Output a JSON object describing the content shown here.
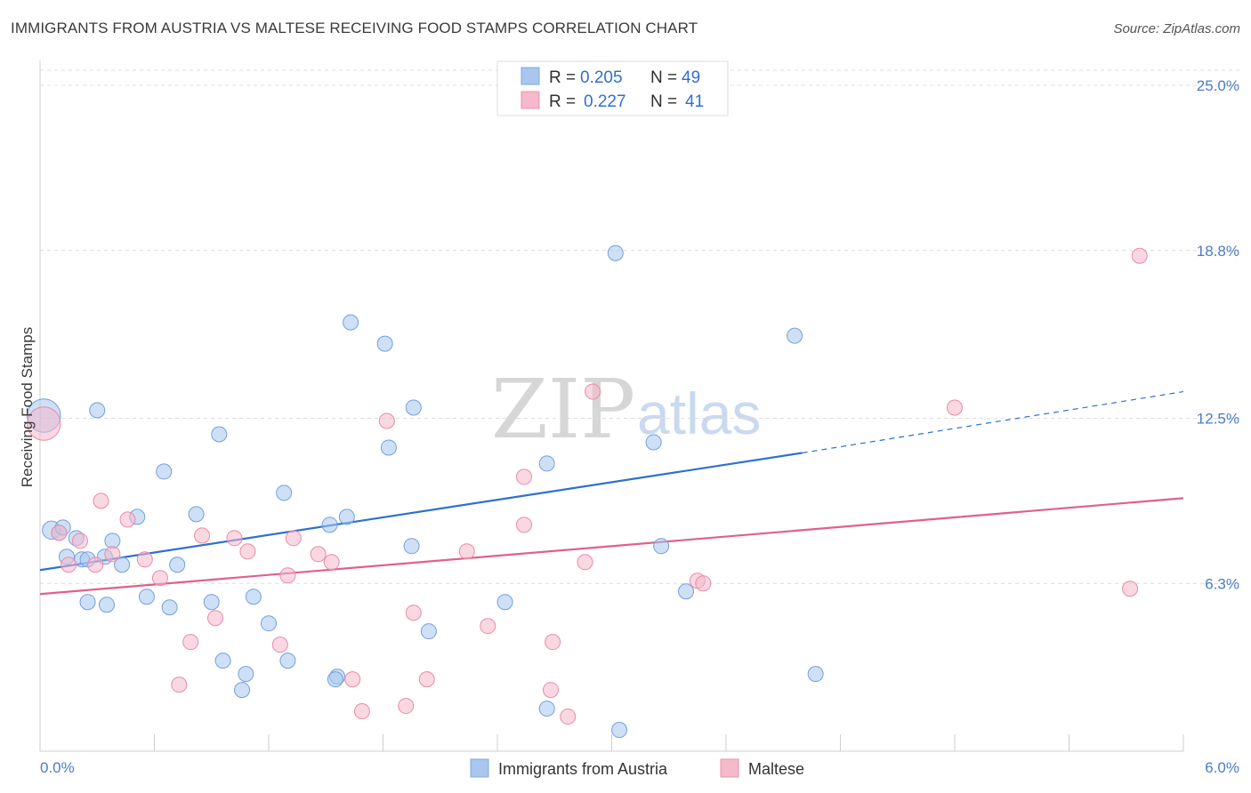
{
  "header": {
    "title": "IMMIGRANTS FROM AUSTRIA VS MALTESE RECEIVING FOOD STAMPS CORRELATION CHART",
    "source": "Source: ZipAtlas.com"
  },
  "watermark": {
    "zip": "ZIP",
    "atlas": "atlas"
  },
  "legend": {
    "rows": [
      {
        "r_label": "R = ",
        "r_value": "0.205",
        "n_label": "N = ",
        "n_value": "49",
        "color": "#a8c6ee"
      },
      {
        "r_label": "R = ",
        "r_value": "0.227",
        "n_label": "N = ",
        "n_value": "41",
        "color": "#f6b8cb"
      }
    ]
  },
  "bottom_legend": [
    {
      "label": "Immigrants from Austria",
      "color": "#a8c6ee"
    },
    {
      "label": "Maltese",
      "color": "#f6b8cb"
    }
  ],
  "chart_data": {
    "type": "scatter",
    "title": "IMMIGRANTS FROM AUSTRIA VS MALTESE RECEIVING FOOD STAMPS CORRELATION CHART",
    "xlabel": "",
    "ylabel": "Receiving Food Stamps",
    "xlim": [
      0,
      6.0
    ],
    "ylim": [
      0,
      25.0
    ],
    "x_tick_labels": [
      {
        "value": 0,
        "label": "0.0%"
      },
      {
        "value": 6.0,
        "label": "6.0%"
      }
    ],
    "y_tick_labels": [
      {
        "value": 6.3,
        "label": "6.3%"
      },
      {
        "value": 12.5,
        "label": "12.5%"
      },
      {
        "value": 18.8,
        "label": "18.8%"
      },
      {
        "value": 25.0,
        "label": "25.0%"
      }
    ],
    "grid": "horizontal dashed",
    "legend_position": "top-center",
    "series": [
      {
        "name": "Immigrants from Austria",
        "color": "#6fa0e0",
        "fill": "#a8c6ee",
        "R": 0.205,
        "N": 49,
        "trend": {
          "x": [
            0,
            4.0
          ],
          "y": [
            6.8,
            11.2
          ],
          "dashed_to": [
            6.0,
            13.5
          ]
        },
        "points": [
          [
            0.02,
            12.6,
            2.2
          ],
          [
            0.06,
            8.3,
            1.2
          ],
          [
            0.1,
            8.2,
            1.0
          ],
          [
            0.14,
            7.3,
            1.0
          ],
          [
            0.19,
            8.0,
            1.0
          ],
          [
            0.22,
            7.2,
            1.0
          ],
          [
            0.25,
            7.2,
            1.0
          ],
          [
            0.3,
            12.8,
            1.0
          ],
          [
            0.34,
            7.3,
            1.0
          ],
          [
            0.38,
            7.9,
            1.0
          ],
          [
            0.43,
            7.0,
            1.0
          ],
          [
            0.51,
            8.8,
            1.0
          ],
          [
            0.65,
            10.5,
            1.0
          ],
          [
            0.56,
            5.8,
            1.0
          ],
          [
            0.68,
            5.4,
            1.0
          ],
          [
            0.72,
            7.0,
            1.0
          ],
          [
            0.82,
            8.9,
            1.0
          ],
          [
            0.94,
            11.9,
            1.0
          ],
          [
            0.9,
            5.6,
            1.0
          ],
          [
            0.96,
            3.4,
            1.0
          ],
          [
            1.08,
            2.9,
            1.0
          ],
          [
            1.2,
            4.8,
            1.0
          ],
          [
            1.06,
            2.3,
            1.0
          ],
          [
            1.12,
            5.8,
            1.0
          ],
          [
            1.3,
            3.4,
            1.0
          ],
          [
            1.28,
            9.7,
            1.0
          ],
          [
            1.56,
            2.8,
            1.0
          ],
          [
            1.55,
            2.7,
            1.0
          ],
          [
            1.52,
            8.5,
            1.0
          ],
          [
            1.61,
            8.8,
            1.0
          ],
          [
            1.63,
            16.1,
            1.0
          ],
          [
            1.83,
            11.4,
            1.0
          ],
          [
            1.81,
            15.3,
            1.0
          ],
          [
            1.96,
            12.9,
            1.0
          ],
          [
            1.95,
            7.7,
            1.0
          ],
          [
            2.04,
            4.5,
            1.0
          ],
          [
            2.44,
            5.6,
            1.0
          ],
          [
            2.66,
            10.8,
            1.0
          ],
          [
            2.66,
            1.6,
            1.0
          ],
          [
            3.02,
            18.7,
            1.0
          ],
          [
            3.04,
            0.8,
            1.0
          ],
          [
            3.22,
            11.6,
            1.0
          ],
          [
            3.26,
            7.7,
            1.0
          ],
          [
            3.39,
            6.0,
            1.0
          ],
          [
            3.96,
            15.6,
            1.0
          ],
          [
            4.07,
            2.9,
            1.0
          ],
          [
            0.12,
            8.4,
            1.0
          ],
          [
            0.25,
            5.6,
            1.0
          ],
          [
            0.35,
            5.5,
            1.0
          ]
        ]
      },
      {
        "name": "Maltese",
        "color": "#ea8aa8",
        "fill": "#f6b8cb",
        "R": 0.227,
        "N": 41,
        "trend": {
          "x": [
            0,
            6.0
          ],
          "y": [
            5.9,
            9.5
          ]
        },
        "points": [
          [
            0.02,
            12.3,
            2.2
          ],
          [
            0.1,
            8.2,
            1.0
          ],
          [
            0.15,
            7.0,
            1.0
          ],
          [
            0.21,
            7.9,
            1.0
          ],
          [
            0.29,
            7.0,
            1.0
          ],
          [
            0.32,
            9.4,
            1.0
          ],
          [
            0.38,
            7.4,
            1.0
          ],
          [
            0.46,
            8.7,
            1.0
          ],
          [
            0.55,
            7.2,
            1.0
          ],
          [
            0.63,
            6.5,
            1.0
          ],
          [
            0.73,
            2.5,
            1.0
          ],
          [
            0.79,
            4.1,
            1.0
          ],
          [
            0.85,
            8.1,
            1.0
          ],
          [
            0.92,
            5.0,
            1.0
          ],
          [
            1.02,
            8.0,
            1.0
          ],
          [
            1.09,
            7.5,
            1.0
          ],
          [
            1.26,
            4.0,
            1.0
          ],
          [
            1.3,
            6.6,
            1.0
          ],
          [
            1.33,
            8.0,
            1.0
          ],
          [
            1.46,
            7.4,
            1.0
          ],
          [
            1.53,
            7.1,
            1.0
          ],
          [
            1.64,
            2.7,
            1.0
          ],
          [
            1.69,
            1.5,
            1.0
          ],
          [
            1.82,
            12.4,
            1.0
          ],
          [
            1.92,
            1.7,
            1.0
          ],
          [
            1.96,
            5.2,
            1.0
          ],
          [
            2.03,
            2.7,
            1.0
          ],
          [
            2.24,
            7.5,
            1.0
          ],
          [
            2.35,
            4.7,
            1.0
          ],
          [
            2.54,
            8.5,
            1.0
          ],
          [
            2.54,
            10.3,
            1.0
          ],
          [
            2.68,
            2.3,
            1.0
          ],
          [
            2.69,
            4.1,
            1.0
          ],
          [
            2.77,
            1.3,
            1.0
          ],
          [
            2.86,
            7.1,
            1.0
          ],
          [
            2.9,
            13.5,
            1.0
          ],
          [
            3.45,
            6.4,
            1.0
          ],
          [
            3.48,
            6.3,
            1.0
          ],
          [
            4.8,
            12.9,
            1.0
          ],
          [
            5.72,
            6.1,
            1.0
          ],
          [
            5.77,
            18.6,
            1.0
          ]
        ]
      }
    ]
  }
}
